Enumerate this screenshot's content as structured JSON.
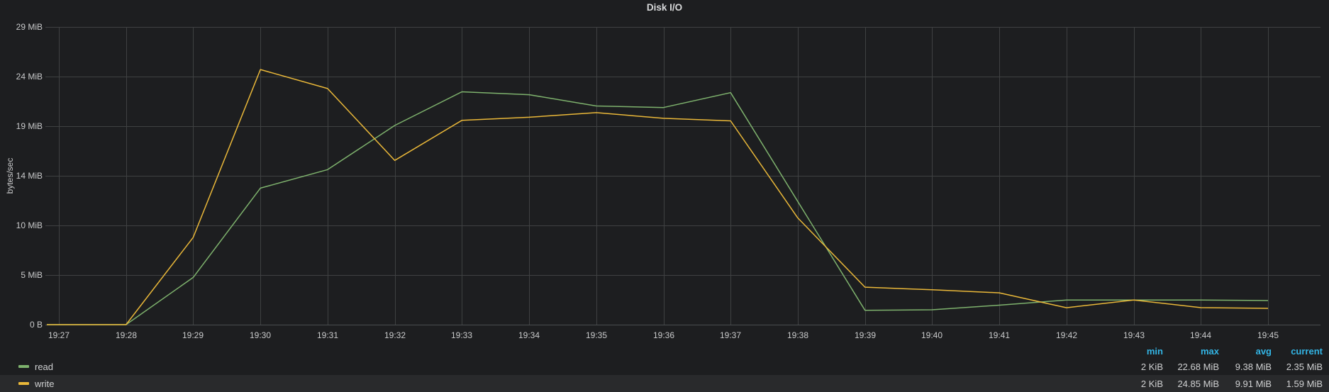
{
  "panel": {
    "title": "Disk I/O"
  },
  "chart_data": {
    "type": "line",
    "title": "Disk I/O",
    "xlabel": "",
    "ylabel": "bytes/sec",
    "unit": "MiB",
    "grid": true,
    "legend_position": "bottom",
    "ylim_mib": [
      0,
      29
    ],
    "y_tick_labels_bottom_to_top": [
      "0 B",
      "5 MiB",
      "10 MiB",
      "14 MiB",
      "19 MiB",
      "24 MiB",
      "29 MiB"
    ],
    "x": [
      "19:27",
      "19:28",
      "19:29",
      "19:30",
      "19:31",
      "19:32",
      "19:33",
      "19:34",
      "19:35",
      "19:36",
      "19:37",
      "19:38",
      "19:39",
      "19:40",
      "19:41",
      "19:42",
      "19:43",
      "19:44",
      "19:45"
    ],
    "series": [
      {
        "name": "read",
        "color": "#7eb26d",
        "values_mib": [
          0.002,
          0.002,
          4.6,
          13.3,
          15.1,
          19.4,
          22.68,
          22.4,
          21.3,
          21.15,
          22.6,
          12.0,
          1.4,
          1.45,
          1.9,
          2.4,
          2.4,
          2.4,
          2.35
        ]
      },
      {
        "name": "write",
        "color": "#eab839",
        "values_mib": [
          0.002,
          0.002,
          8.5,
          24.85,
          23.0,
          16.0,
          19.9,
          20.2,
          20.65,
          20.1,
          19.85,
          10.4,
          3.65,
          3.4,
          3.1,
          1.65,
          2.4,
          1.66,
          1.59
        ]
      }
    ]
  },
  "legend": {
    "headers": [
      "min",
      "max",
      "avg",
      "current"
    ],
    "rows": [
      {
        "name": "read",
        "color": "#7eb26d",
        "min": "2 KiB",
        "max": "22.68 MiB",
        "avg": "9.38 MiB",
        "current": "2.35 MiB",
        "highlighted": false
      },
      {
        "name": "write",
        "color": "#eab839",
        "min": "2 KiB",
        "max": "24.85 MiB",
        "avg": "9.91 MiB",
        "current": "1.59 MiB",
        "highlighted": true
      }
    ]
  },
  "colors": {
    "background": "#1d1e20",
    "grid": "#3f4142",
    "axis_line": "#4b4d50",
    "tick_text": "#c9cacb",
    "title_text": "#d8d9da",
    "legend_text": "#d0d1d2",
    "legend_header": "#33b5e5",
    "row_highlight": "rgba(255,255,255,0.055)"
  }
}
